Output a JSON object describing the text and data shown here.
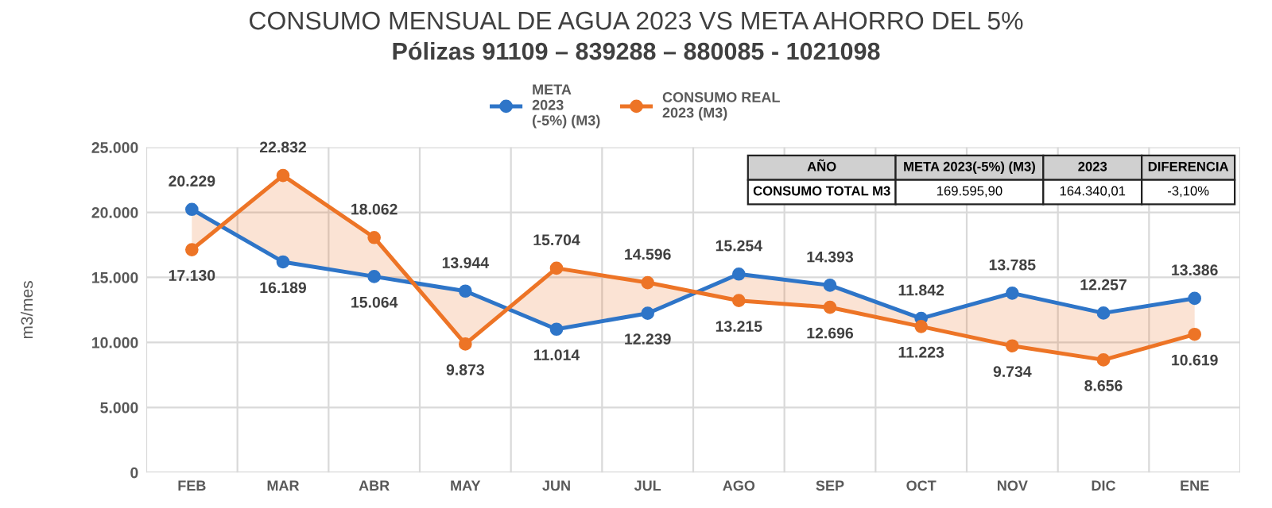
{
  "chart_data": {
    "type": "line",
    "title": "CONSUMO MENSUAL DE AGUA 2023 VS META AHORRO DEL 5%",
    "subtitle": "Pólizas 91109 – 839288 – 880085 - 1021098",
    "ylabel": "m3/mes",
    "categories": [
      "FEB",
      "MAR",
      "ABR",
      "MAY",
      "JUN",
      "JUL",
      "AGO",
      "SEP",
      "OCT",
      "NOV",
      "DIC",
      "ENE"
    ],
    "series": [
      {
        "name": "META\n2023\n(-5%) (M3)",
        "color": "#2e75c8",
        "values": [
          20229,
          16189,
          15064,
          13944,
          11014,
          12239,
          15254,
          14393,
          11842,
          13785,
          12257,
          13386
        ],
        "value_labels": [
          "20.229",
          "16.189",
          "15.064",
          "13.944",
          "11.014",
          "12.239",
          "15.254",
          "14.393",
          "11.842",
          "13.785",
          "12.257",
          "13.386"
        ]
      },
      {
        "name": "CONSUMO REAL\n2023 (M3)",
        "color": "#ed7426",
        "values": [
          17130,
          22832,
          18062,
          9873,
          15704,
          14596,
          13215,
          12696,
          11223,
          9734,
          8656,
          10619
        ],
        "value_labels": [
          "17.130",
          "22.832",
          "18.062",
          "9.873",
          "15.704",
          "14.596",
          "13.215",
          "12.696",
          "11.223",
          "9.734",
          "8.656",
          "10.619"
        ],
        "lower": [
          20229,
          16189,
          15064,
          13944,
          11014,
          12239,
          15254,
          14393,
          11842,
          13785,
          12257,
          13386
        ],
        "upper": [
          17130,
          22832,
          18062,
          9873,
          15704,
          14596,
          13215,
          12696,
          11223,
          9734,
          8656,
          10619
        ]
      }
    ],
    "ylim": [
      0,
      25000
    ],
    "yticks": [
      {
        "value": 0,
        "label": "0"
      },
      {
        "value": 5000,
        "label": "5.000"
      },
      {
        "value": 10000,
        "label": "10.000"
      },
      {
        "value": 15000,
        "label": "15.000"
      },
      {
        "value": 20000,
        "label": "20.000"
      },
      {
        "value": 25000,
        "label": "25.000"
      }
    ],
    "grid": true,
    "legend": "top",
    "marker": "circle",
    "line_style": "solid",
    "annotations": [
      "AÑO",
      "META 2023(-5%) (M3)",
      "2023",
      "DIFERENCIA",
      "CONSUMO TOTAL M3",
      "169.595,90",
      "164.340,01",
      "-3,10%"
    ]
  }
}
